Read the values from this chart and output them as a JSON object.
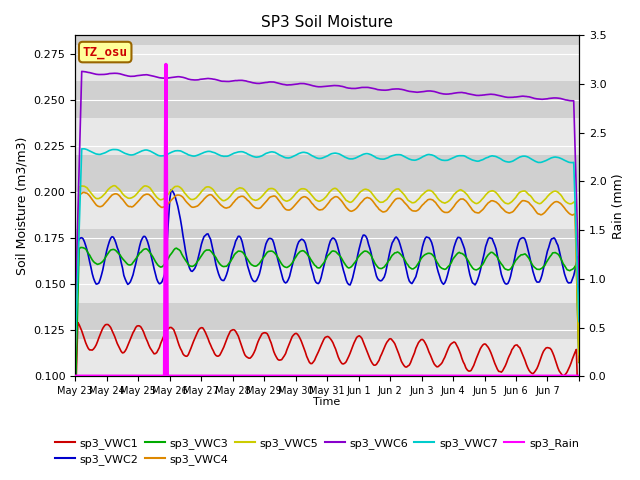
{
  "title": "SP3 Soil Moisture",
  "xlabel": "Time",
  "ylabel_left": "Soil Moisture (m3/m3)",
  "ylabel_right": "Rain (mm)",
  "ylim_left": [
    0.1,
    0.285
  ],
  "ylim_right": [
    0.0,
    3.5
  ],
  "background_color": "#ffffff",
  "plot_bg_color": "#dcdcdc",
  "grid_color": "#ffffff",
  "timezone_label": "TZ_osu",
  "timezone_bg": "#ffff99",
  "timezone_border": "#cc0000",
  "legend_entries": [
    {
      "label": "sp3_VWC1",
      "color": "#cc0000"
    },
    {
      "label": "sp3_VWC2",
      "color": "#0000cc"
    },
    {
      "label": "sp3_VWC3",
      "color": "#00aa00"
    },
    {
      "label": "sp3_VWC4",
      "color": "#dd8800"
    },
    {
      "label": "sp3_VWC5",
      "color": "#cccc00"
    },
    {
      "label": "sp3_VWC6",
      "color": "#8800cc"
    },
    {
      "label": "sp3_VWC7",
      "color": "#00cccc"
    },
    {
      "label": "sp3_Rain",
      "color": "#ff00ff"
    }
  ],
  "x_tick_labels": [
    "May 23",
    "May 24",
    "May 25",
    "May 26",
    "May 27",
    "May 28",
    "May 29",
    "May 30",
    "May 31",
    "Jun 1",
    "Jun 2",
    "Jun 3",
    "Jun 4",
    "Jun 5",
    "Jun 6",
    "Jun 7"
  ],
  "num_days": 16,
  "rain_event_day": 2.9,
  "rain_event_value": 3.2
}
